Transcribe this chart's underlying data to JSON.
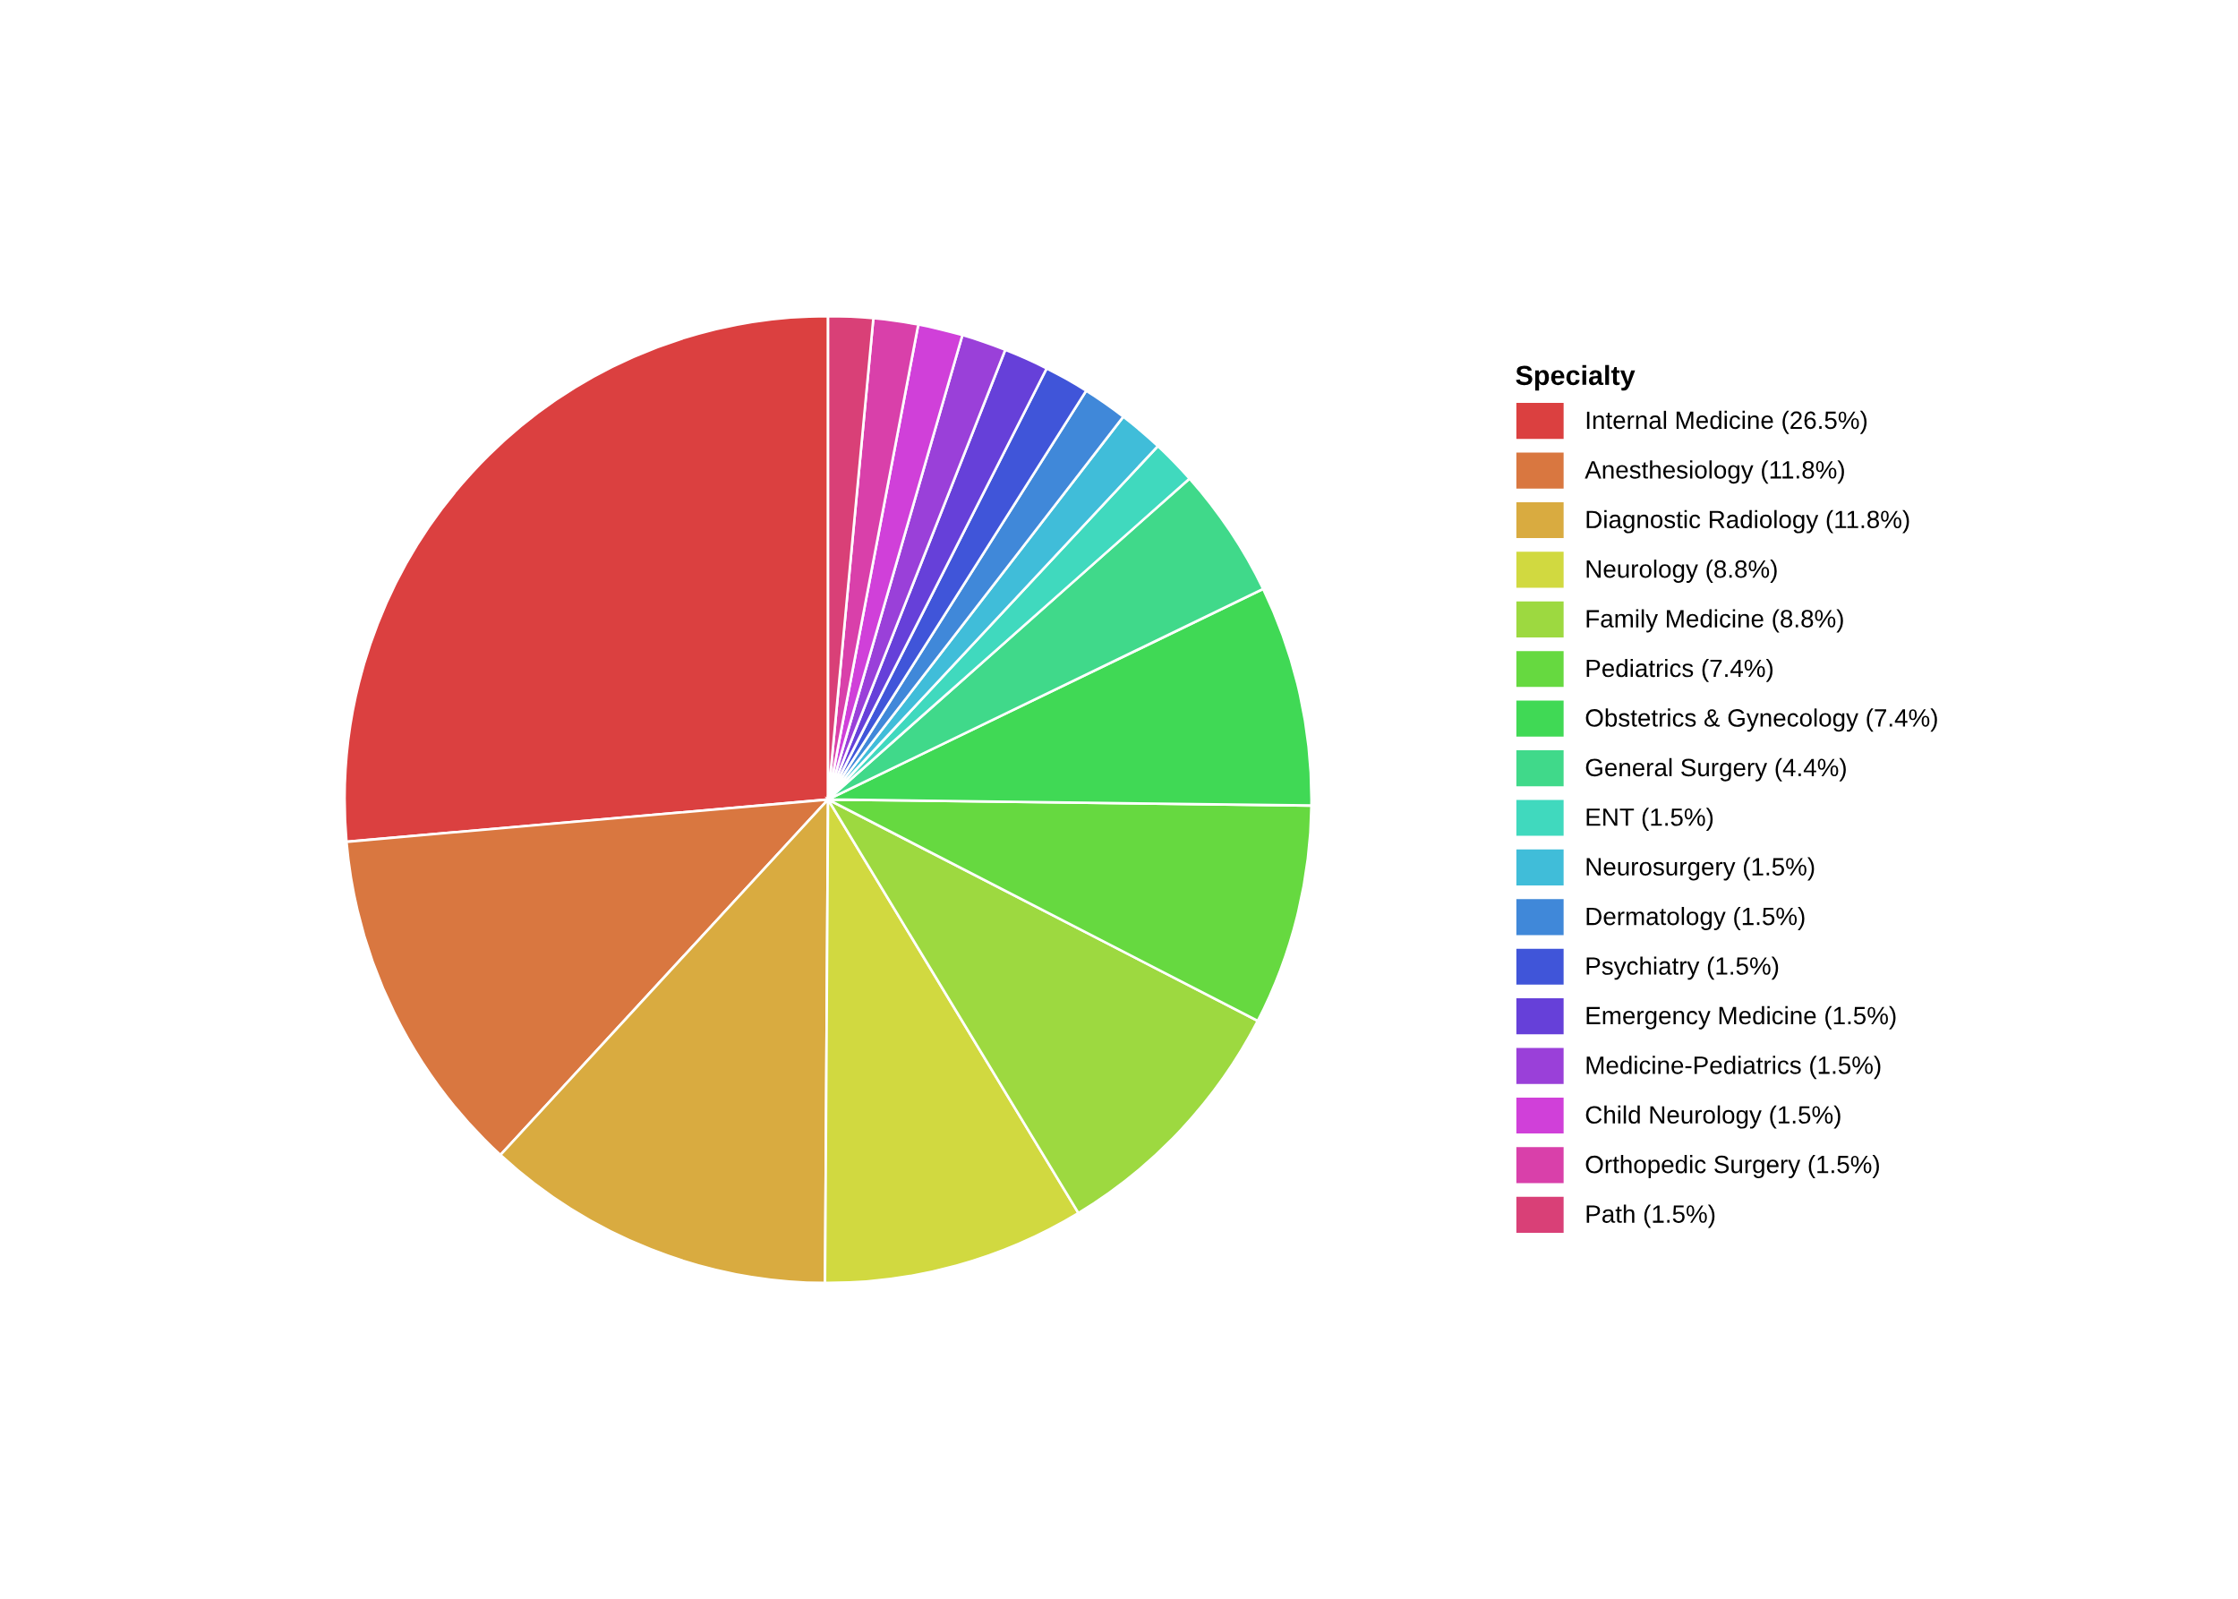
{
  "chart_data": {
    "type": "pie",
    "legend_title": "Specialty",
    "legend": "right",
    "categories": [
      "Internal Medicine (26.5%)",
      "Anesthesiology (11.8%)",
      "Diagnostic Radiology (11.8%)",
      "Neurology (8.8%)",
      "Family Medicine (8.8%)",
      "Pediatrics (7.4%)",
      "Obstetrics & Gynecology (7.4%)",
      "General Surgery (4.4%)",
      "ENT (1.5%)",
      "Neurosurgery (1.5%)",
      "Dermatology (1.5%)",
      "Psychiatry (1.5%)",
      "Emergency Medicine (1.5%)",
      "Medicine-Pediatrics (1.5%)",
      "Child Neurology (1.5%)",
      "Orthopedic Surgery (1.5%)",
      "Path (1.5%)"
    ],
    "values": [
      26.5,
      11.8,
      11.8,
      8.8,
      8.8,
      7.4,
      7.4,
      4.4,
      1.5,
      1.5,
      1.5,
      1.5,
      1.5,
      1.5,
      1.5,
      1.5,
      1.5
    ],
    "colors": [
      "#db4040",
      "#d97740",
      "#d9ab40",
      "#d1d940",
      "#9dd940",
      "#66d940",
      "#40d955",
      "#40d98a",
      "#40d9be",
      "#40bdd9",
      "#4088d9",
      "#4055d9",
      "#6640d9",
      "#9a40d9",
      "#d040d9",
      "#d940aa",
      "#d94077"
    ]
  }
}
